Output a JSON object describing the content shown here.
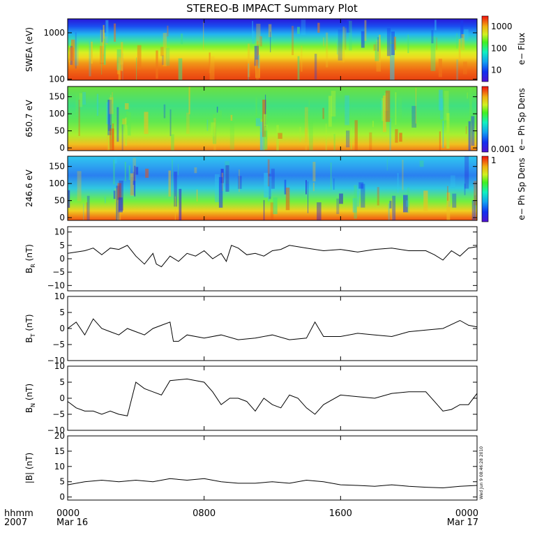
{
  "title": "STEREO-B IMPACT Summary Plot",
  "timestamp": "Wed Jun 9 08:46:28 2010",
  "footer": {
    "format_label": "hhmm",
    "year": "2007"
  },
  "chart_data": [
    {
      "id": "swea",
      "type": "heatmap",
      "ylabel": "SWEA (eV)",
      "yscale": "log",
      "yticks": [
        {
          "v": 100,
          "label": "100"
        },
        {
          "v": 1000,
          "label": "1000"
        }
      ],
      "ylim": [
        95,
        2000
      ],
      "colorbar": {
        "label": "e− Flux",
        "scale": "log",
        "ticks": [
          {
            "v": 10,
            "label": "10"
          },
          {
            "v": 100,
            "label": "100"
          },
          {
            "v": 1000,
            "label": "1000"
          }
        ],
        "range": [
          3,
          3000
        ]
      }
    },
    {
      "id": "pad650",
      "type": "heatmap",
      "ylabel": "650.7 eV",
      "yscale": "linear",
      "yticks": [
        {
          "v": 0,
          "label": "0"
        },
        {
          "v": 50,
          "label": "50"
        },
        {
          "v": 100,
          "label": "100"
        },
        {
          "v": 150,
          "label": "150"
        }
      ],
      "ylim": [
        -8,
        180
      ],
      "colorbar": {
        "label": "e− Ph Sp Dens",
        "ticks": [
          {
            "v": 0.001,
            "label": "0.001"
          }
        ]
      }
    },
    {
      "id": "pad246",
      "type": "heatmap",
      "ylabel": "246.6 eV",
      "yscale": "linear",
      "yticks": [
        {
          "v": 0,
          "label": "0"
        },
        {
          "v": 50,
          "label": "50"
        },
        {
          "v": 100,
          "label": "100"
        },
        {
          "v": 150,
          "label": "150"
        }
      ],
      "ylim": [
        -8,
        180
      ],
      "colorbar": {
        "label": "e− Ph Sp Dens",
        "ticks": [
          {
            "v": 1,
            "label": "1"
          }
        ]
      }
    },
    {
      "id": "br",
      "type": "line",
      "ylabel": "B",
      "ylabel_sub": "R",
      "ylabel_suffix": " (nT)",
      "ylim": [
        -12,
        12
      ],
      "yticks": [
        {
          "v": -10,
          "label": "−10"
        },
        {
          "v": -5,
          "label": "−5"
        },
        {
          "v": 0,
          "label": "0"
        },
        {
          "v": 5,
          "label": "5"
        },
        {
          "v": 10,
          "label": "10"
        }
      ],
      "x": [
        0,
        1,
        1.5,
        2,
        2.5,
        3,
        3.5,
        4,
        4.5,
        5,
        5.2,
        5.5,
        6,
        6.5,
        7,
        7.5,
        8,
        8.5,
        9,
        9.3,
        9.6,
        10,
        10.5,
        11,
        11.5,
        12,
        12.5,
        13,
        14,
        15,
        16,
        17,
        18,
        19,
        20,
        21,
        21.5,
        22,
        22.5,
        23,
        23.5,
        24
      ],
      "values": [
        2,
        3,
        4,
        1.5,
        4,
        3.5,
        5,
        1,
        -2,
        2,
        -2,
        -3,
        1,
        -1,
        2,
        1,
        3,
        0,
        2,
        -1,
        5,
        4,
        1.5,
        2,
        1,
        3,
        3.5,
        5,
        4,
        3,
        3.5,
        2.5,
        3.5,
        4,
        3,
        3,
        1.5,
        -0.5,
        3,
        1,
        4,
        4.5
      ]
    },
    {
      "id": "bt",
      "type": "line",
      "ylabel": "B",
      "ylabel_sub": "T",
      "ylabel_suffix": " (nT)",
      "ylim": [
        -10,
        10
      ],
      "yticks": [
        {
          "v": -10,
          "label": "−10"
        },
        {
          "v": -5,
          "label": "−5"
        },
        {
          "v": 0,
          "label": "0"
        },
        {
          "v": 5,
          "label": "5"
        },
        {
          "v": 10,
          "label": "10"
        }
      ],
      "x": [
        0,
        0.5,
        1,
        1.5,
        2,
        2.5,
        3,
        3.5,
        4,
        4.5,
        5,
        5.5,
        6,
        6.2,
        6.5,
        7,
        8,
        9,
        10,
        11,
        12,
        13,
        14,
        14.5,
        15,
        16,
        17,
        18,
        19,
        20,
        21,
        22,
        23,
        23.5,
        24
      ],
      "values": [
        0,
        2,
        -2,
        3,
        0,
        -1,
        -2,
        0,
        -1,
        -2,
        0,
        1,
        2,
        -4,
        -4,
        -2,
        -3,
        -2,
        -3.5,
        -3,
        -2,
        -3.5,
        -3,
        2,
        -2.5,
        -2.5,
        -1.5,
        -2,
        -2.5,
        -1,
        -0.5,
        0,
        2.5,
        1,
        0.5
      ]
    },
    {
      "id": "bn",
      "type": "line",
      "ylabel": "B",
      "ylabel_sub": "N",
      "ylabel_suffix": " (nT)",
      "ylim": [
        -10,
        10
      ],
      "yticks": [
        {
          "v": -10,
          "label": "−10"
        },
        {
          "v": -5,
          "label": "−5"
        },
        {
          "v": 0,
          "label": "0"
        },
        {
          "v": 5,
          "label": "5"
        },
        {
          "v": 10,
          "label": "10"
        }
      ],
      "x": [
        0,
        0.5,
        1,
        1.5,
        2,
        2.5,
        3,
        3.5,
        4,
        4.5,
        5,
        5.5,
        6,
        7,
        8,
        8.5,
        9,
        9.5,
        10,
        10.5,
        11,
        11.5,
        12,
        12.5,
        13,
        13.5,
        14,
        14.5,
        15,
        16,
        17,
        18,
        19,
        20,
        21,
        21.5,
        22,
        22.5,
        23,
        23.5,
        24
      ],
      "values": [
        -1,
        -3,
        -4,
        -4,
        -5,
        -4,
        -5,
        -5.5,
        5,
        3,
        2,
        1,
        5.5,
        6,
        5,
        2,
        -2,
        0,
        0,
        -1,
        -4,
        0,
        -2,
        -3,
        1,
        0,
        -3,
        -5,
        -2,
        1,
        0.5,
        0,
        1.5,
        2,
        2,
        -1,
        -4,
        -3.5,
        -2,
        -2,
        1.5
      ]
    },
    {
      "id": "bmag",
      "type": "line",
      "ylabel": "|B| (nT)",
      "ylim": [
        -1,
        20
      ],
      "yticks": [
        {
          "v": 0,
          "label": "0"
        },
        {
          "v": 5,
          "label": "5"
        },
        {
          "v": 10,
          "label": "10"
        },
        {
          "v": 15,
          "label": "15"
        },
        {
          "v": 20,
          "label": "20"
        }
      ],
      "x": [
        0,
        1,
        2,
        3,
        4,
        5,
        6,
        7,
        8,
        9,
        10,
        11,
        12,
        13,
        14,
        15,
        16,
        17,
        18,
        19,
        20,
        21,
        22,
        23,
        24
      ],
      "values": [
        4,
        5,
        5.5,
        5,
        5.5,
        5,
        6,
        5.5,
        6,
        5,
        4.5,
        4.5,
        5,
        4.5,
        5.5,
        5,
        4,
        3.8,
        3.5,
        4,
        3.5,
        3.2,
        3,
        3.5,
        3.8
      ]
    }
  ],
  "xaxis": {
    "ticks": [
      {
        "v": 0,
        "label": "0000",
        "date": "Mar 16"
      },
      {
        "v": 8,
        "label": "0800"
      },
      {
        "v": 16,
        "label": "1600"
      },
      {
        "v": 24,
        "label": "0000",
        "date": "Mar 17"
      }
    ],
    "xlim": [
      0,
      24
    ]
  }
}
